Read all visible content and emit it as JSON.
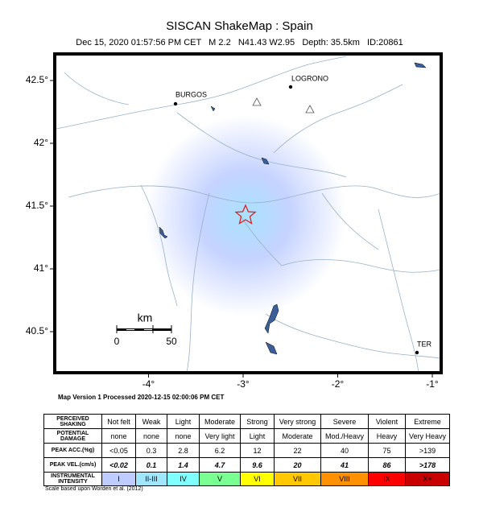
{
  "header": {
    "title": "SISCAN ShakeMap : Spain",
    "subtitle": "Dec 15, 2020 01:57:56 PM CET   M 2.2   N41.43 W2.95   Depth: 35.5km   ID:20861"
  },
  "map": {
    "lon_ticks": [
      {
        "value": -4,
        "label": "-4°"
      },
      {
        "value": -3,
        "label": "-3°"
      },
      {
        "value": -2,
        "label": "-2°"
      },
      {
        "value": -1,
        "label": "-1°"
      }
    ],
    "lat_ticks": [
      {
        "value": 42.5,
        "label": "42.5°"
      },
      {
        "value": 42,
        "label": "42°"
      },
      {
        "value": 41.5,
        "label": "41.5°"
      },
      {
        "value": 41,
        "label": "41°"
      },
      {
        "value": 40.5,
        "label": "40.5°"
      }
    ],
    "cities": [
      "BURGOS",
      "LOGRONO",
      "TER"
    ],
    "scale_bar": {
      "unit": "km",
      "labels": [
        "0",
        "50"
      ]
    }
  },
  "footer": {
    "processed": "Map Version 1 Processed 2020-12-15 02:00:06 PM CET",
    "note": "Scale based upon Worden et al. (2012)"
  },
  "table": {
    "rows": [
      [
        "PERCEIVED SHAKING",
        "Not felt",
        "Weak",
        "Light",
        "Moderate",
        "Strong",
        "Very strong",
        "Severe",
        "Violent",
        "Extreme"
      ],
      [
        "POTENTIAL DAMAGE",
        "none",
        "none",
        "none",
        "Very light",
        "Light",
        "Moderate",
        "Mod./Heavy",
        "Heavy",
        "Very Heavy"
      ],
      [
        "PEAK ACC.(%g)",
        "<0.05",
        "0.3",
        "2.8",
        "6.2",
        "12",
        "22",
        "40",
        "75",
        ">139"
      ],
      [
        "PEAK VEL.(cm/s)",
        "<0.02",
        "0.1",
        "1.4",
        "4.7",
        "9.6",
        "20",
        "41",
        "86",
        ">178"
      ],
      [
        "INSTRUMENTAL INTENSITY",
        "I",
        "II-III",
        "IV",
        "V",
        "VI",
        "VII",
        "VIII",
        "IX",
        "X+"
      ]
    ]
  }
}
